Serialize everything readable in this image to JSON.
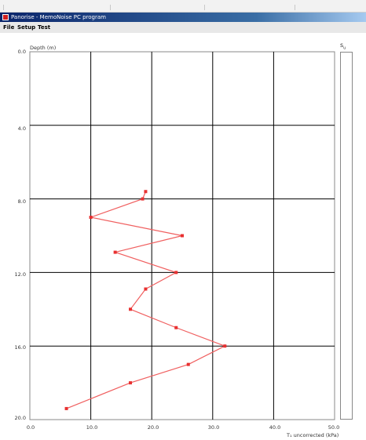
{
  "window": {
    "title": "Panorise - MemoNoise PC program"
  },
  "menu": {
    "items": [
      "File",
      "Setup",
      "Test"
    ]
  },
  "side_panel": {
    "label": "s",
    "sub": "u"
  },
  "chart_data": {
    "type": "line",
    "title": "",
    "ylabel": "Depth (m)",
    "xlabel": "T₁ uncorrected (kPa)",
    "xlim": [
      0,
      50
    ],
    "ylim": [
      0,
      20
    ],
    "y_inverted": true,
    "x_ticks": [
      "0.0",
      "10.0",
      "20.0",
      "30.0",
      "40.0",
      "50.0"
    ],
    "y_ticks": [
      "0.0",
      "4.0",
      "8.0",
      "12.0",
      "16.0",
      "20.0"
    ],
    "grid": true,
    "color": "#f06060",
    "series": [
      {
        "x": [
          19.0,
          18.5,
          10.0,
          25.0,
          14.0,
          24.0,
          19.0,
          16.5,
          24.0,
          32.0,
          26.0,
          16.5,
          6.0
        ],
        "y": [
          7.6,
          8.0,
          9.0,
          10.0,
          10.9,
          12.0,
          12.9,
          14.0,
          15.0,
          16.0,
          17.0,
          18.0,
          19.4
        ]
      }
    ]
  }
}
